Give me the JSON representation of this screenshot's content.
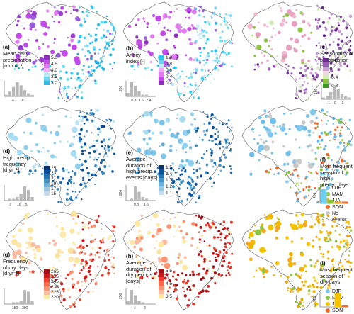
{
  "panels": [
    {
      "id": "a",
      "label": "(a)",
      "title": [
        "Mean daily",
        "precipitation",
        "[mm d⁻¹]"
      ],
      "colors": [
        "#8e2fbf",
        "#c24be8",
        "#e07bf0",
        "#f2a6f5",
        "#bfe9f5",
        "#6fd3ee",
        "#2fb8e0"
      ],
      "ticks": [
        "5.0",
        "4.5",
        "4.0",
        "3.5",
        "3.0"
      ],
      "hist": {
        "ytick": "200",
        "xticks": [
          "4",
          "6"
        ],
        "values": [
          1,
          3,
          6,
          9,
          7,
          4,
          2,
          1
        ]
      },
      "mapColors": [
        "#c24be8",
        "#e07bf0",
        "#9b3fd1",
        "#2fc6ee",
        "#6fe0f5",
        "#1fb0e8",
        "#9a5de0"
      ]
    },
    {
      "id": "b",
      "label": "(b)",
      "title": [
        "Aridity",
        "index [-]"
      ],
      "colors": [
        "#2fc6ee",
        "#6fd3ee",
        "#bfe9f5",
        "#f2a6f5",
        "#e07bf0",
        "#c24be8",
        "#8e2fbf"
      ],
      "ticks": [
        "1.0",
        "0.8",
        "0.6",
        "0.4",
        "0.2"
      ],
      "hist": {
        "ytick": "200",
        "xticks": [
          "0.8",
          "1.6",
          "2.4"
        ],
        "values": [
          2,
          8,
          6,
          3,
          1,
          1,
          0,
          0
        ]
      },
      "mapColors": [
        "#c24be8",
        "#8e2fbf",
        "#e07bf0",
        "#2fc6ee",
        "#6fe0f5",
        "#bfe9f5",
        "#9a5de0"
      ]
    },
    {
      "id": "c",
      "label": "(c)",
      "title": [
        "Seasonality of",
        "precipitation [-]"
      ],
      "colors": [
        "#6b2a8f",
        "#9b59b6",
        "#c8a0d8",
        "#f3d3e8",
        "#d4edb6",
        "#8cc63f",
        "#3f9a24"
      ],
      "ticks": [
        "0.4",
        "0",
        "-0.4",
        "-0.8"
      ],
      "hist": {
        "ytick": "150",
        "xticks": [
          "-1",
          "0",
          "1"
        ],
        "values": [
          1,
          2,
          4,
          8,
          6,
          3,
          2,
          1
        ]
      },
      "mapColors": [
        "#f3b6cf",
        "#e7a0c0",
        "#8cc63f",
        "#6b2a8f",
        "#9b59b6",
        "#c8a0d8",
        "#d4edb6"
      ]
    },
    {
      "id": "d",
      "label": "(d)",
      "title": [
        "High precip.",
        "frequency",
        "[d yr⁻¹]"
      ],
      "colors": [
        "#08306b",
        "#08519c",
        "#2171b5",
        "#4292c6",
        "#6baed6",
        "#9ecae1",
        "#c6dbef"
      ],
      "ticks": [
        "25",
        "23",
        "21",
        "19",
        "17",
        "15"
      ],
      "hist": {
        "ytick": "200",
        "xticks": [
          "0",
          "10",
          "20"
        ],
        "values": [
          0,
          1,
          1,
          2,
          4,
          8,
          6,
          2
        ]
      },
      "mapColors": [
        "#8fd0ee",
        "#a7dcf2",
        "#7cc4ea",
        "#2171b5",
        "#08519c",
        "#4292c6",
        "#b9e4f5"
      ]
    },
    {
      "id": "e",
      "label": "(e)",
      "title": [
        "Average",
        "duration of",
        "high precip.",
        "events [days]"
      ],
      "colors": [
        "#08306b",
        "#08519c",
        "#2171b5",
        "#4292c6",
        "#6baed6",
        "#9ecae1",
        "#c6dbef"
      ],
      "ticks": [
        "1.5",
        "1.4",
        "1.3",
        "1.2",
        "1.1"
      ],
      "hist": {
        "ytick": "200",
        "xticks": [
          "0.8",
          "1.6"
        ],
        "values": [
          0,
          1,
          8,
          5,
          2,
          1,
          0,
          0
        ]
      },
      "mapColors": [
        "#8fd0ee",
        "#a7dcf2",
        "#7cc4ea",
        "#2171b5",
        "#08519c",
        "#4292c6",
        "#6baed6"
      ]
    },
    {
      "id": "f",
      "label": "(f)",
      "title": [
        "Most frequent",
        "season of high",
        "precip. days"
      ],
      "hist": {
        "ytick": "400",
        "xticks": [],
        "values": [
          8,
          2,
          1,
          1
        ],
        "colors": [
          "#6fd0f0",
          "#8cc63f",
          "#f5a623",
          "#f06a2a"
        ]
      },
      "legend": [
        {
          "label": "DJF",
          "color": "#7cc8f0"
        },
        {
          "label": "MAM",
          "color": "#8cc63f"
        },
        {
          "label": "JJA",
          "color": "#f5a623"
        },
        {
          "label": "SON",
          "color": "#f06a2a"
        },
        {
          "label": "No",
          "color": "#c8c8c8"
        },
        {
          "label": "events",
          "color": ""
        }
      ],
      "mapColors": [
        "#7cc8f0",
        "#6fbde8",
        "#c8c8c8",
        "#8cc63f",
        "#f06a2a",
        "#5cb3e6",
        "#7cc8f0"
      ]
    },
    {
      "id": "g",
      "label": "(g)",
      "title": [
        "Frequency",
        "of dry days",
        "[d yr⁻¹]"
      ],
      "colors": [
        "#a50f15",
        "#cb181d",
        "#ef3b2c",
        "#fb6a4a",
        "#fc9272",
        "#fcbba1",
        "#fee8a0"
      ],
      "ticks": [
        "265",
        "255",
        "245",
        "235",
        "225",
        "220"
      ],
      "hist": {
        "ytick": "250",
        "xticks": [
          "150",
          "300"
        ],
        "values": [
          0,
          0,
          1,
          1,
          2,
          8,
          7,
          2
        ]
      },
      "mapColors": [
        "#fee8a0",
        "#fde3a0",
        "#fcbba1",
        "#ef3b2c",
        "#cb181d",
        "#fc9272",
        "#fde9b0"
      ]
    },
    {
      "id": "h",
      "label": "(h)",
      "title": [
        "Average",
        "duration of",
        "dry periods",
        "[days]"
      ],
      "colors": [
        "#a50f15",
        "#cb181d",
        "#ef3b2c",
        "#fb6a4a",
        "#fc9272",
        "#fcbba1",
        "#fee8a0"
      ],
      "ticks": [
        "5.5",
        "4.5",
        "3.5"
      ],
      "hist": {
        "ytick": "250",
        "xticks": [
          "4",
          "8"
        ],
        "values": [
          2,
          8,
          5,
          2,
          1,
          0,
          0,
          0
        ]
      },
      "mapColors": [
        "#fcbba1",
        "#fc9272",
        "#fee8a0",
        "#cb181d",
        "#a50f15",
        "#ef3b2c",
        "#fde3a0"
      ]
    },
    {
      "id": "i",
      "label": "(i)",
      "title": [
        "Most frequent",
        "season of",
        "dry days"
      ],
      "hist": {
        "ytick": "500",
        "xticks": [],
        "values": [
          0,
          0,
          9,
          1
        ],
        "colors": [
          "#6fd0f0",
          "#8cc63f",
          "#f5c400",
          "#f06a2a"
        ]
      },
      "legend": [
        {
          "label": "DJF",
          "color": "#7cc8f0"
        },
        {
          "label": "MAM",
          "color": "#8cc63f"
        },
        {
          "label": "JJA",
          "color": "#f5c400"
        },
        {
          "label": "SON",
          "color": "#f06a2a"
        }
      ],
      "mapColors": [
        "#f5c400",
        "#f2b705",
        "#f5a623",
        "#e8b000",
        "#f0a000",
        "#f7c520",
        "#8cc63f"
      ]
    }
  ]
}
